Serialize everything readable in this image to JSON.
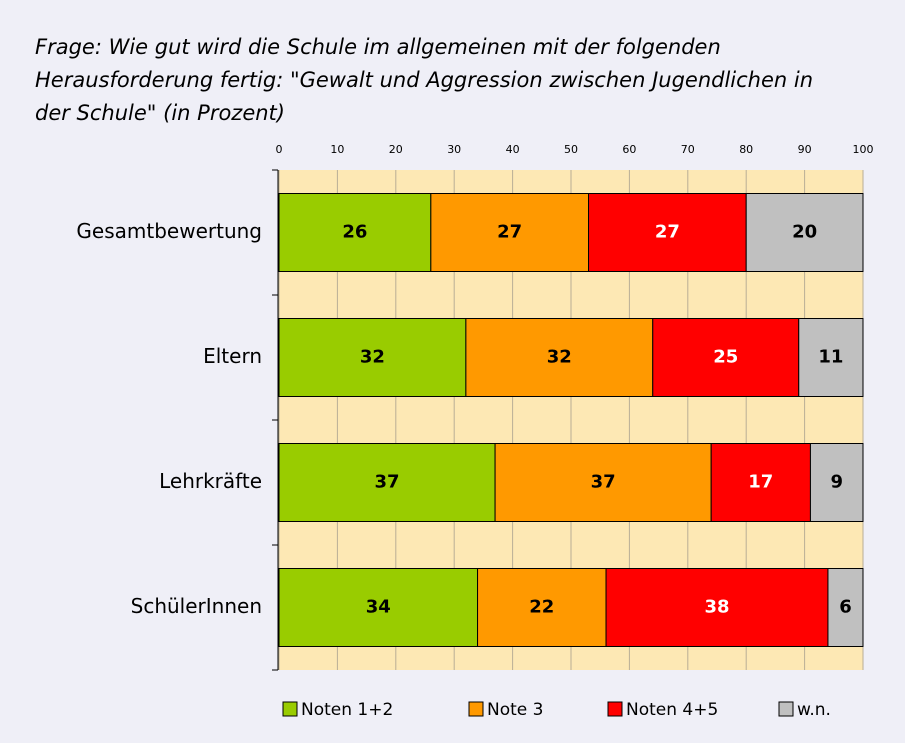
{
  "chart_data": {
    "type": "stacked_bar_horizontal",
    "title_lines": [
      "Frage: Wie gut wird die Schule im allgemeinen mit der folgenden",
      "Herausforderung fertig: \"Gewalt und Aggression zwischen Jugendlichen in",
      "der Schule\"   (in Prozent)"
    ],
    "categories": [
      "Gesamtbewertung",
      "Eltern",
      "Lehrkräfte",
      "SchülerInnen"
    ],
    "series": [
      {
        "name": "Noten 1+2",
        "color": "#99cc00",
        "label_color": "#000000",
        "values": [
          26,
          32,
          37,
          34
        ]
      },
      {
        "name": "Note 3",
        "color": "#ff9900",
        "label_color": "#000000",
        "values": [
          27,
          32,
          37,
          22
        ]
      },
      {
        "name": "Noten 4+5",
        "color": "#ff0000",
        "label_color": "#ffffff",
        "values": [
          27,
          25,
          17,
          38
        ]
      },
      {
        "name": "w.n.",
        "color": "#c0c0c0",
        "label_color": "#000000",
        "values": [
          20,
          11,
          9,
          6
        ]
      }
    ],
    "xlim": [
      0,
      100
    ],
    "xticks": [
      0,
      10,
      20,
      30,
      40,
      50,
      60,
      70,
      80,
      90,
      100
    ],
    "grid": true,
    "legend": "bottom"
  }
}
